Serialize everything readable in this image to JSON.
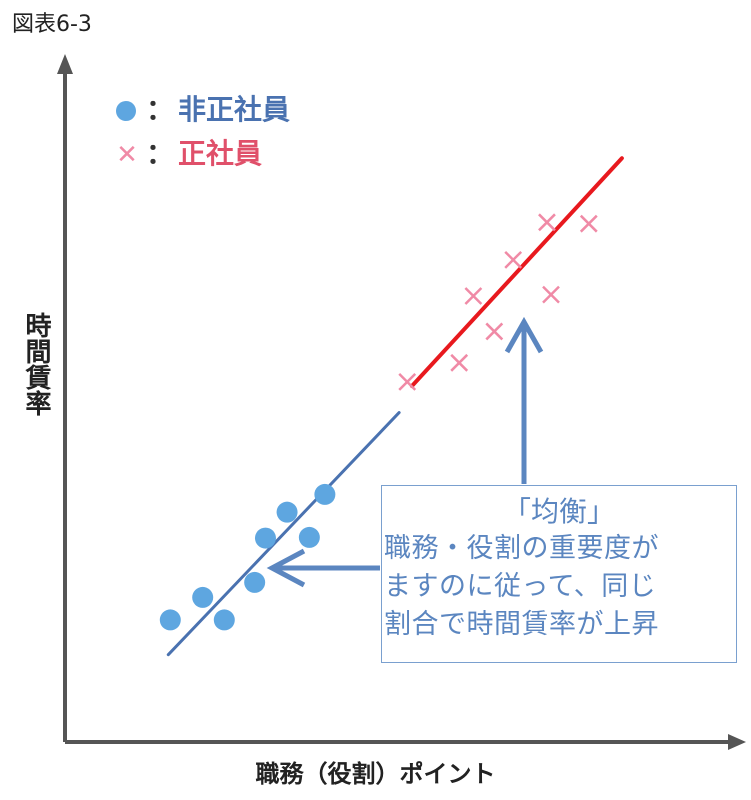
{
  "figure_label": "図表6-3",
  "colors": {
    "non_regular_points": "#5ea6e0",
    "non_regular_line": "#4a72b0",
    "regular_points": "#f08aa6",
    "regular_line": "#e8191e",
    "axis": "#555555",
    "annotation": "#5b86c0"
  },
  "legend": {
    "separator": "：",
    "non_regular": {
      "label": "非正社員",
      "marker": "filled-circle"
    },
    "regular": {
      "label": "正社員",
      "marker": "cross"
    }
  },
  "annotation": {
    "title": "「均衡」",
    "lines": [
      "職務・役割の重要度が",
      "ますのに従って、同じ",
      "割合で時間賃率が上昇"
    ]
  },
  "chart_data": {
    "type": "scatter",
    "xlabel": "職務（役割）ポイント",
    "ylabel": "時間賃率",
    "xlim": [
      0,
      100
    ],
    "ylim": [
      0,
      100
    ],
    "ticks_shown": false,
    "grid": false,
    "series": [
      {
        "name": "非正社員",
        "marker": "circle",
        "points": [
          [
            15.6,
            17.9
          ],
          [
            20.4,
            21.2
          ],
          [
            23.6,
            17.9
          ],
          [
            28.1,
            23.4
          ],
          [
            29.7,
            29.9
          ],
          [
            32.9,
            33.7
          ],
          [
            36.2,
            30.0
          ],
          [
            38.5,
            36.3
          ]
        ],
        "trend_line": [
          [
            15.3,
            12.8
          ],
          [
            49.5,
            48.3
          ]
        ]
      },
      {
        "name": "正社員",
        "marker": "cross",
        "points": [
          [
            50.7,
            52.8
          ],
          [
            58.4,
            55.6
          ],
          [
            60.5,
            65.4
          ],
          [
            63.6,
            60.2
          ],
          [
            66.4,
            70.7
          ],
          [
            71.4,
            76.2
          ],
          [
            72.0,
            65.6
          ],
          [
            77.6,
            76.0
          ]
        ],
        "trend_line": [
          [
            51.4,
            52.2
          ],
          [
            82.5,
            85.6
          ]
        ]
      }
    ]
  }
}
